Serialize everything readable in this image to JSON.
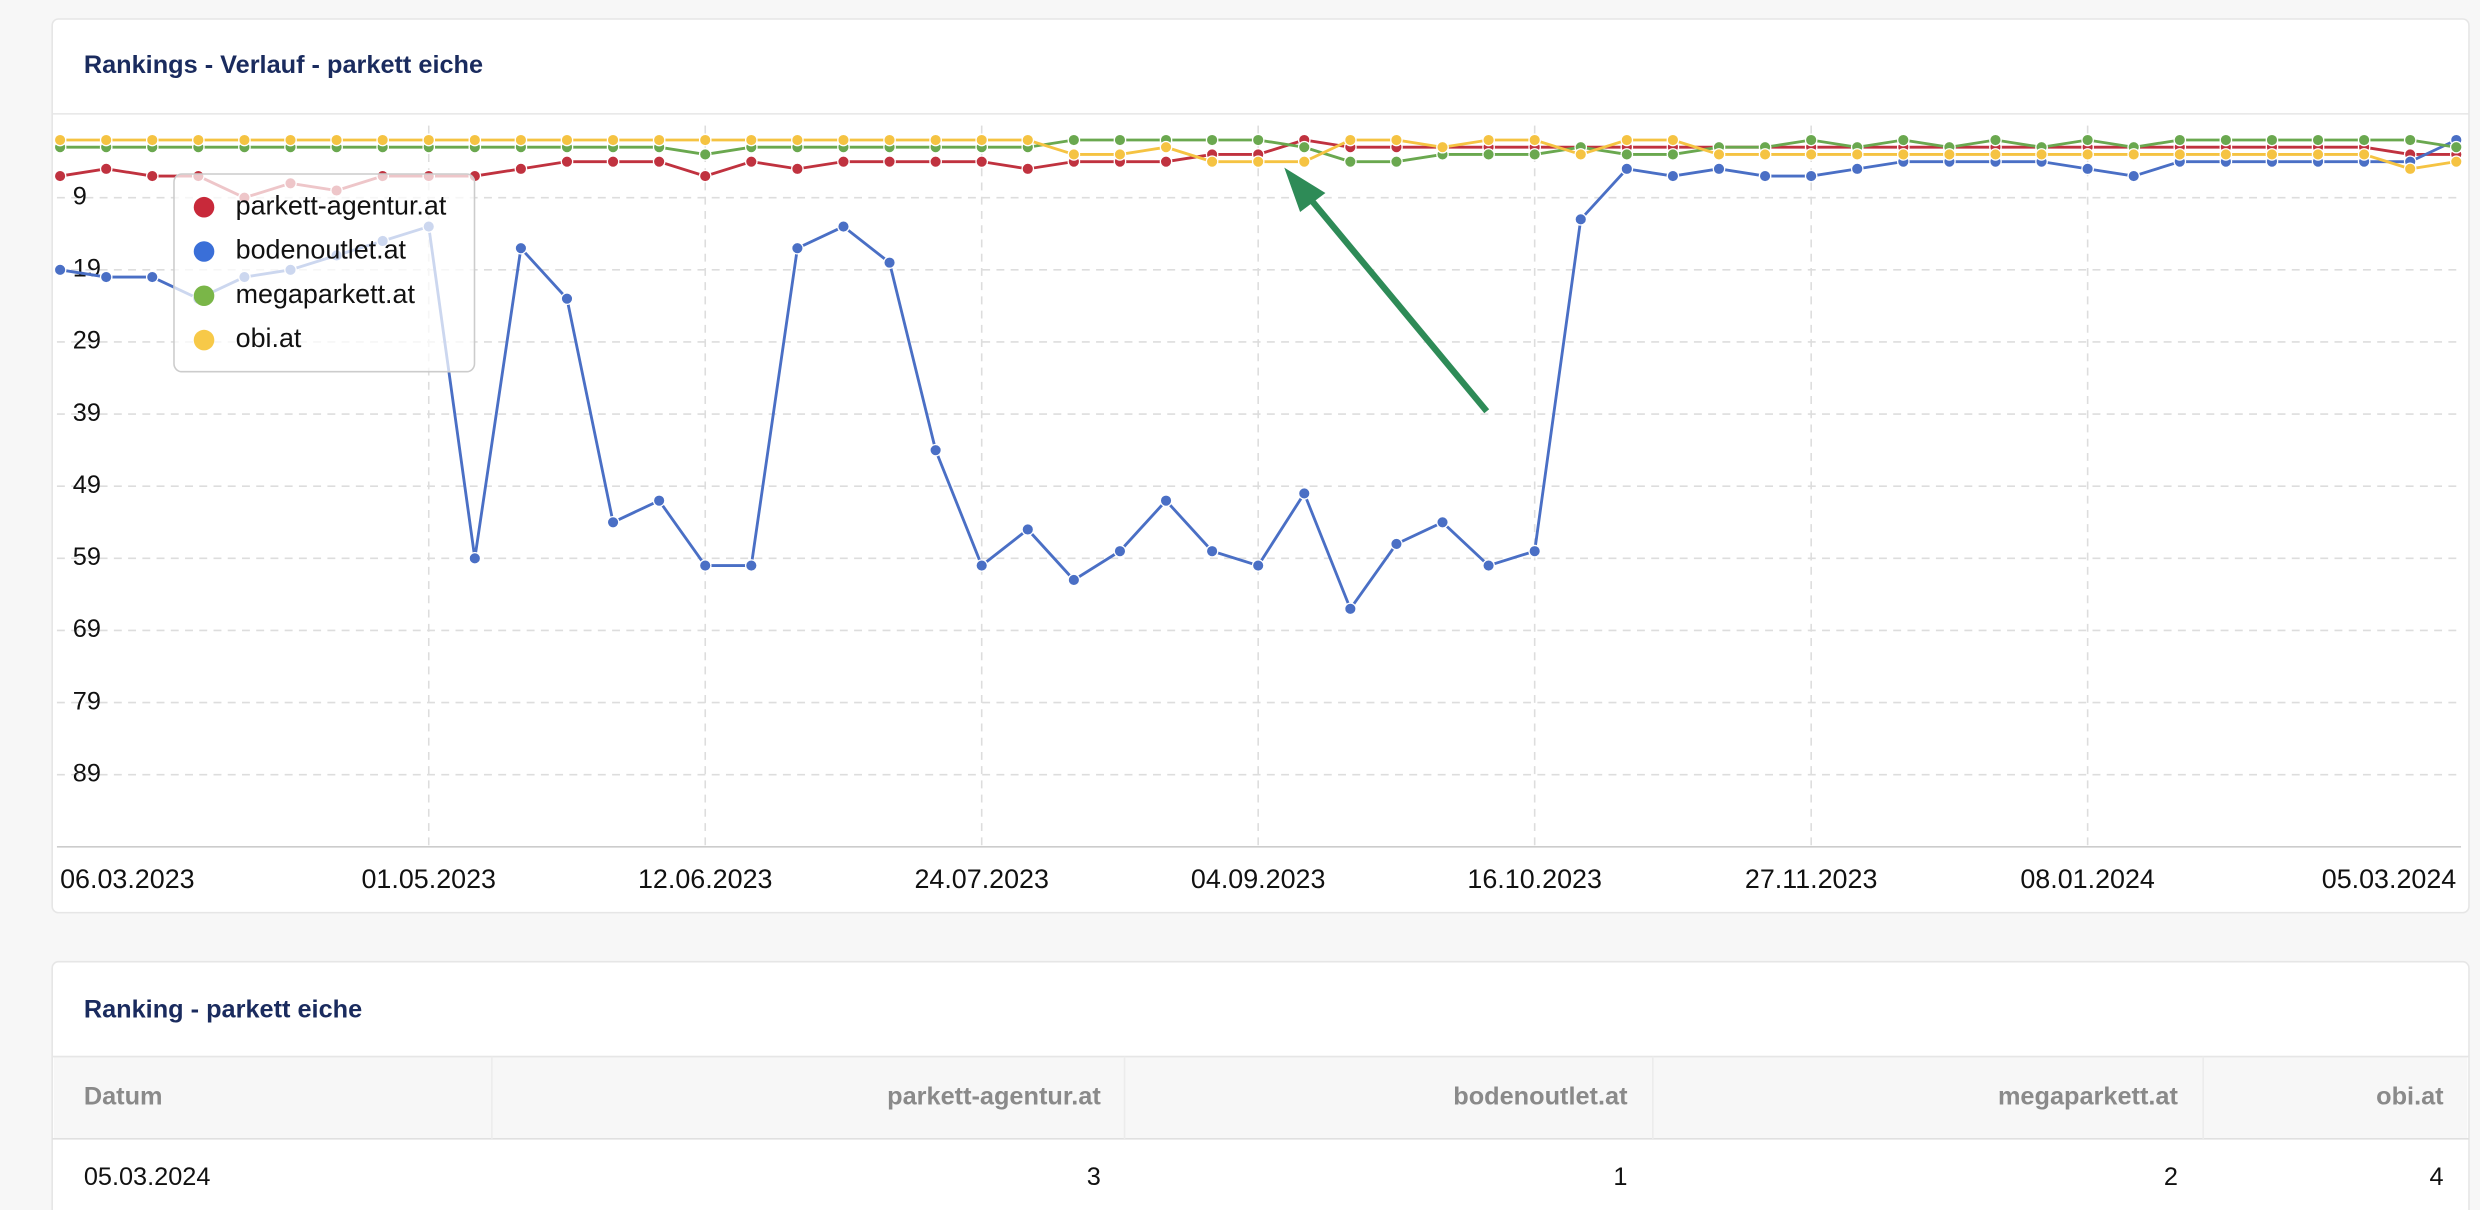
{
  "chart_panel": {
    "title": "Rankings - Verlauf - parkett eiche"
  },
  "chart_data": {
    "type": "line",
    "categories": [
      "06.03.2023",
      null,
      null,
      null,
      null,
      null,
      null,
      null,
      "01.05.2023",
      null,
      null,
      null,
      null,
      null,
      "12.06.2023",
      null,
      null,
      null,
      null,
      null,
      "24.07.2023",
      null,
      null,
      null,
      null,
      null,
      "04.09.2023",
      null,
      null,
      null,
      null,
      null,
      "16.10.2023",
      null,
      null,
      null,
      null,
      null,
      "27.11.2023",
      null,
      null,
      null,
      null,
      null,
      "08.01.2024",
      null,
      null,
      null,
      null,
      null,
      null,
      null,
      "05.03.2024"
    ],
    "ylim": [
      99,
      -1
    ],
    "yticks": [
      9,
      19,
      29,
      39,
      49,
      59,
      69,
      79,
      89
    ],
    "reversed": true,
    "grid": true,
    "legend": "top-left",
    "series": [
      {
        "name": "parkett-agentur.at",
        "color": "#c0323f",
        "legend_color": "#c8293a",
        "values": [
          6,
          5,
          6,
          6,
          9,
          7,
          8,
          6,
          6,
          6,
          5,
          4,
          4,
          4,
          6,
          4,
          5,
          4,
          4,
          4,
          4,
          5,
          4,
          4,
          4,
          3,
          3,
          1,
          2,
          2,
          2,
          2,
          2,
          2,
          2,
          2,
          2,
          2,
          2,
          2,
          2,
          2,
          2,
          2,
          2,
          2,
          2,
          2,
          2,
          2,
          2,
          3,
          3
        ]
      },
      {
        "name": "bodenoutlet.at",
        "color": "#4a6fc5",
        "legend_color": "#3a6fd8",
        "values": [
          19,
          20,
          20,
          23,
          20,
          19,
          17,
          15,
          13,
          59,
          16,
          23,
          54,
          51,
          60,
          60,
          16,
          13,
          18,
          44,
          60,
          55,
          62,
          58,
          51,
          58,
          60,
          50,
          66,
          57,
          54,
          60,
          58,
          12,
          5,
          6,
          5,
          6,
          6,
          5,
          4,
          4,
          4,
          4,
          5,
          6,
          4,
          4,
          4,
          4,
          4,
          4,
          1
        ]
      },
      {
        "name": "megaparkett.at",
        "color": "#6aa84f",
        "legend_color": "#7ab648",
        "values": [
          2,
          2,
          2,
          2,
          2,
          2,
          2,
          2,
          2,
          2,
          2,
          2,
          2,
          2,
          3,
          2,
          2,
          2,
          2,
          2,
          2,
          2,
          1,
          1,
          1,
          1,
          1,
          2,
          4,
          4,
          3,
          3,
          3,
          2,
          3,
          3,
          2,
          2,
          1,
          2,
          1,
          2,
          1,
          2,
          1,
          2,
          1,
          1,
          1,
          1,
          1,
          1,
          2
        ]
      },
      {
        "name": "obi.at",
        "color": "#f5c342",
        "legend_color": "#f7c948",
        "values": [
          1,
          1,
          1,
          1,
          1,
          1,
          1,
          1,
          1,
          1,
          1,
          1,
          1,
          1,
          1,
          1,
          1,
          1,
          1,
          1,
          1,
          1,
          3,
          3,
          2,
          4,
          4,
          4,
          1,
          1,
          2,
          1,
          1,
          3,
          1,
          1,
          3,
          3,
          3,
          3,
          3,
          3,
          3,
          3,
          3,
          3,
          3,
          3,
          3,
          3,
          3,
          5,
          4
        ]
      }
    ]
  },
  "table": {
    "title": "Ranking - parkett eiche",
    "headers": [
      "Datum",
      "parkett-agentur.at",
      "bodenoutlet.at",
      "megaparkett.at",
      "obi.at"
    ],
    "rows": [
      [
        "05.03.2024",
        "3",
        "1",
        "2",
        "4"
      ]
    ]
  }
}
